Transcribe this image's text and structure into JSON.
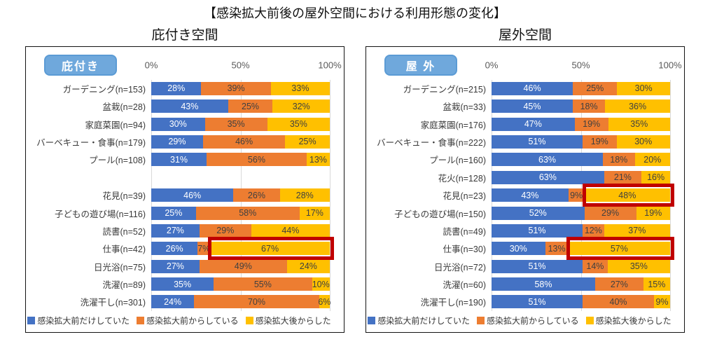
{
  "page_title": "【感染拡大前後の屋外空間における利用形態の変化】",
  "colors": {
    "highlight": "#C00000",
    "badge_fill": "#6FA8DC",
    "badge_border": "#5B9BD5",
    "axis_text": "#595959",
    "grid_line": "#D9D9D9",
    "label_dark": "#404040",
    "panel_border": "#141414"
  },
  "chart_data": [
    {
      "type": "bar",
      "orientation": "horizontal",
      "stacked": true,
      "title": "庇付き空間",
      "badge": "庇付き",
      "x_ticks": [
        "0%",
        "50%",
        "100%"
      ],
      "xlim": [
        0,
        100
      ],
      "unit": "%",
      "legend_position": "bottom",
      "categories": [
        "ガーデニング(n=153)",
        "盆栽(n=28)",
        "家庭菜園(n=94)",
        "バーベキュー・食事(n=179)",
        "プール(n=108)",
        "",
        "花見(n=39)",
        "子どもの遊び場(n=116)",
        "読書(n=52)",
        "仕事(n=42)",
        "日光浴(n=75)",
        "洗濯(n=89)",
        "洗濯干し(n=301)"
      ],
      "series": [
        {
          "name": "感染拡大前だけしていた",
          "color": "#4472C4",
          "values": [
            28,
            43,
            30,
            29,
            31,
            null,
            46,
            25,
            27,
            26,
            27,
            35,
            24
          ]
        },
        {
          "name": "感染拡大前からしている",
          "color": "#ED7D31",
          "values": [
            39,
            25,
            35,
            46,
            56,
            null,
            26,
            58,
            29,
            7,
            49,
            55,
            70
          ]
        },
        {
          "name": "感染拡大後からした",
          "color": "#FFC000",
          "values": [
            33,
            32,
            35,
            25,
            13,
            null,
            28,
            17,
            44,
            67,
            24,
            10,
            6
          ]
        }
      ],
      "highlights": [
        {
          "row": 9,
          "segment": 2,
          "category": "仕事(n=42)",
          "value": "67%"
        }
      ]
    },
    {
      "type": "bar",
      "orientation": "horizontal",
      "stacked": true,
      "title": "屋外空間",
      "badge": "屋 外",
      "x_ticks": [
        "0%",
        "50%",
        "100%"
      ],
      "xlim": [
        0,
        100
      ],
      "unit": "%",
      "legend_position": "bottom",
      "categories": [
        "ガーデニング(n=215)",
        "盆栽(n=33)",
        "家庭菜園(n=176)",
        "バーベキュー・食事(n=222)",
        "プール(n=160)",
        "花火(n=128)",
        "花見(n=23)",
        "子どもの遊び場(n=150)",
        "読書(n=49)",
        "仕事(n=30)",
        "日光浴(n=72)",
        "洗濯(n=60)",
        "洗濯干し(n=190)"
      ],
      "series": [
        {
          "name": "感染拡大前だけしていた",
          "color": "#4472C4",
          "values": [
            46,
            45,
            47,
            51,
            63,
            63,
            43,
            52,
            51,
            30,
            51,
            58,
            51
          ]
        },
        {
          "name": "感染拡大前からしている",
          "color": "#ED7D31",
          "values": [
            25,
            18,
            19,
            19,
            18,
            21,
            9,
            29,
            12,
            13,
            14,
            27,
            40
          ]
        },
        {
          "name": "感染拡大後からした",
          "color": "#FFC000",
          "values": [
            30,
            36,
            35,
            30,
            20,
            16,
            48,
            19,
            37,
            57,
            35,
            15,
            9
          ]
        }
      ],
      "highlights": [
        {
          "row": 6,
          "segment": 2,
          "category": "花見(n=23)",
          "value": "48%"
        },
        {
          "row": 9,
          "segment": 2,
          "category": "仕事(n=30)",
          "value": "57%"
        }
      ]
    }
  ]
}
